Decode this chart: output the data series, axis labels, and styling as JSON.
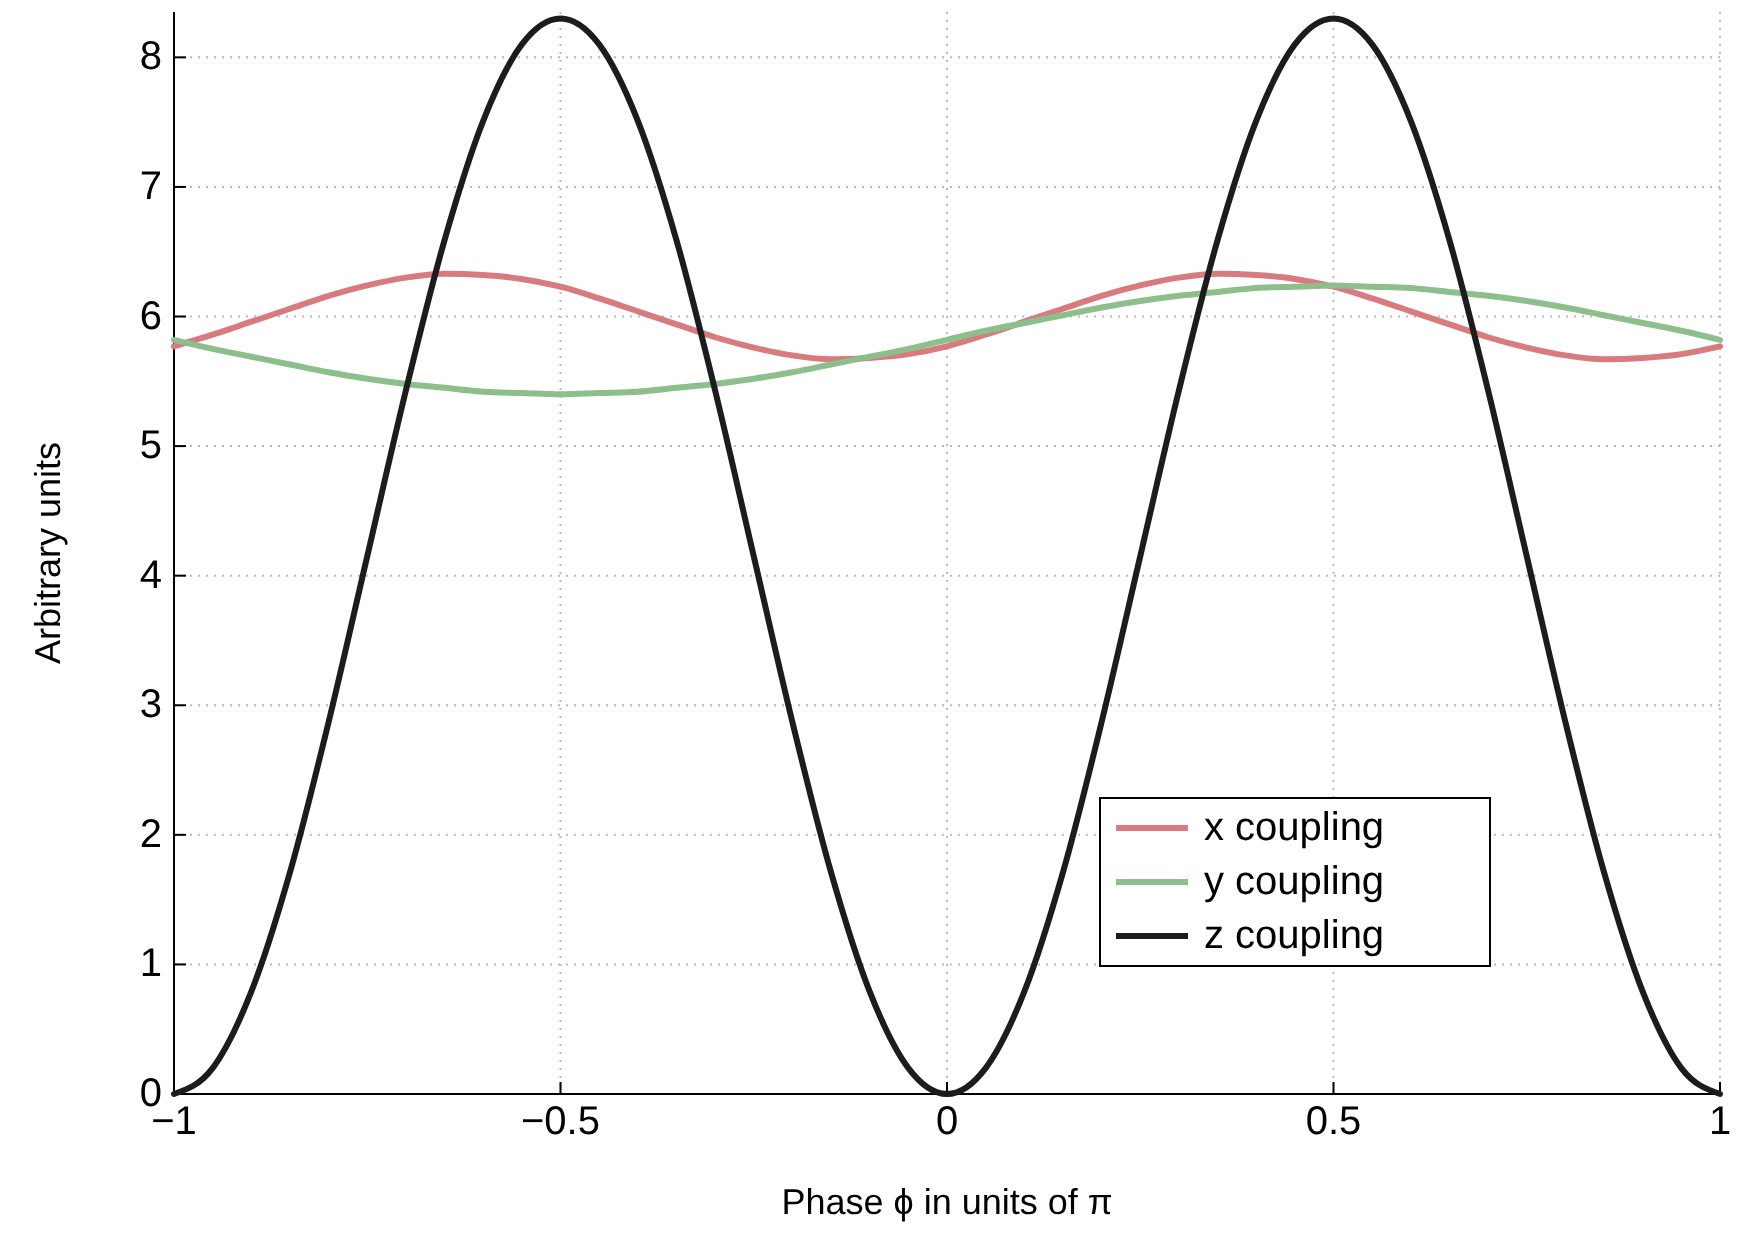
{
  "chart_data": {
    "type": "line",
    "xlabel": "Phase ϕ in units of π",
    "ylabel": "Arbitrary units",
    "x": [
      -1,
      -0.95,
      -0.9,
      -0.85,
      -0.8,
      -0.75,
      -0.7,
      -0.65,
      -0.6,
      -0.55,
      -0.5,
      -0.45,
      -0.4,
      -0.35,
      -0.3,
      -0.25,
      -0.2,
      -0.15,
      -0.1,
      -0.05,
      0,
      0.05,
      0.1,
      0.15,
      0.2,
      0.25,
      0.3,
      0.35,
      0.4,
      0.45,
      0.5,
      0.55,
      0.6,
      0.65,
      0.7,
      0.75,
      0.8,
      0.85,
      0.9,
      0.95,
      1
    ],
    "series": [
      {
        "name": "x coupling",
        "color": "#d97b7e",
        "values": [
          5.77,
          5.86,
          5.96,
          6.06,
          6.16,
          6.24,
          6.3,
          6.33,
          6.32,
          6.29,
          6.23,
          6.14,
          6.04,
          5.94,
          5.84,
          5.76,
          5.7,
          5.67,
          5.68,
          5.71,
          5.77,
          5.86,
          5.96,
          6.06,
          6.16,
          6.24,
          6.3,
          6.33,
          6.32,
          6.29,
          6.23,
          6.14,
          6.04,
          5.94,
          5.84,
          5.76,
          5.7,
          5.67,
          5.68,
          5.71,
          5.77
        ]
      },
      {
        "name": "y coupling",
        "color": "#8dbf8d",
        "values": [
          5.82,
          5.75,
          5.69,
          5.63,
          5.57,
          5.52,
          5.48,
          5.45,
          5.42,
          5.41,
          5.4,
          5.41,
          5.42,
          5.45,
          5.48,
          5.52,
          5.57,
          5.63,
          5.69,
          5.75,
          5.82,
          5.89,
          5.95,
          6.01,
          6.07,
          6.12,
          6.16,
          6.19,
          6.22,
          6.23,
          6.24,
          6.23,
          6.22,
          6.19,
          6.16,
          6.12,
          6.07,
          6.01,
          5.95,
          5.89,
          5.82
        ]
      },
      {
        "name": "z coupling",
        "color": "#1c1c1c",
        "values": [
          0,
          0.2,
          0.79,
          1.71,
          2.87,
          4.15,
          5.43,
          6.59,
          7.51,
          8.1,
          8.3,
          8.1,
          7.51,
          6.59,
          5.43,
          4.15,
          2.87,
          1.71,
          0.79,
          0.2,
          0,
          0.2,
          0.79,
          1.71,
          2.87,
          4.15,
          5.43,
          6.59,
          7.51,
          8.1,
          8.3,
          8.1,
          7.51,
          6.59,
          5.43,
          4.15,
          2.87,
          1.71,
          0.79,
          0.2,
          0
        ]
      }
    ],
    "xlim": [
      -1,
      1
    ],
    "xticks": [
      {
        "value": -1,
        "label": "−1"
      },
      {
        "value": -0.5,
        "label": "−0.5"
      },
      0,
      0.5,
      1
    ],
    "ylim": [
      0,
      8.35
    ],
    "yticks": [
      0,
      1,
      2,
      3,
      4,
      5,
      6,
      7,
      8
    ],
    "grid": true,
    "legend": "bottom right",
    "line_style": "solid"
  }
}
